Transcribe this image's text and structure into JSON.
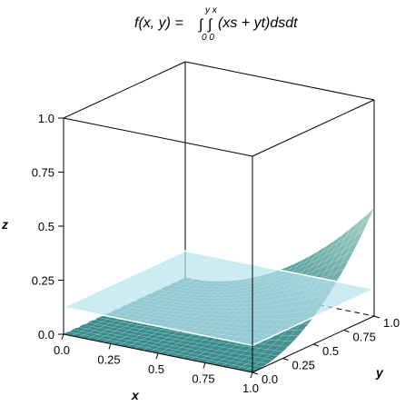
{
  "chart_data": {
    "type": "surface3d",
    "title": {
      "lhs": "f(x, y) = ",
      "integral_symbol": "∫",
      "upper_limits": "y x",
      "lower_limits": "0 0",
      "integrand": "(xs + yt)dsdt"
    },
    "xlabel": "x",
    "ylabel": "y",
    "zlabel": "z",
    "xlim": [
      0,
      1
    ],
    "ylim": [
      0,
      1
    ],
    "zlim": [
      0,
      1
    ],
    "x_ticks": [
      "0.0",
      "0.25",
      "0.5",
      "0.75",
      "1.0"
    ],
    "y_ticks": [
      "0.0",
      "0.25",
      "0.5",
      "0.75",
      "1.0"
    ],
    "z_ticks": [
      "0.0",
      "0.25",
      "0.5",
      "0.75",
      "1.0"
    ],
    "x_tick_values": [
      0,
      0.25,
      0.5,
      0.75,
      1
    ],
    "y_tick_values": [
      0,
      0.25,
      0.5,
      0.75,
      1
    ],
    "z_tick_values": [
      0,
      0.25,
      0.5,
      0.75,
      1
    ],
    "surface": {
      "formula": "z = (x^2 y^2)/2",
      "corner_values": [
        {
          "x": 0,
          "y": 0,
          "z": 0
        },
        {
          "x": 1,
          "y": 0,
          "z": 0
        },
        {
          "x": 0,
          "y": 1,
          "z": 0
        },
        {
          "x": 1,
          "y": 1,
          "z": 0.5
        }
      ],
      "color": "#2e8c8c"
    },
    "plane": {
      "z": 0.125,
      "color": "#b8e2ee"
    },
    "box_color": "#000000"
  }
}
